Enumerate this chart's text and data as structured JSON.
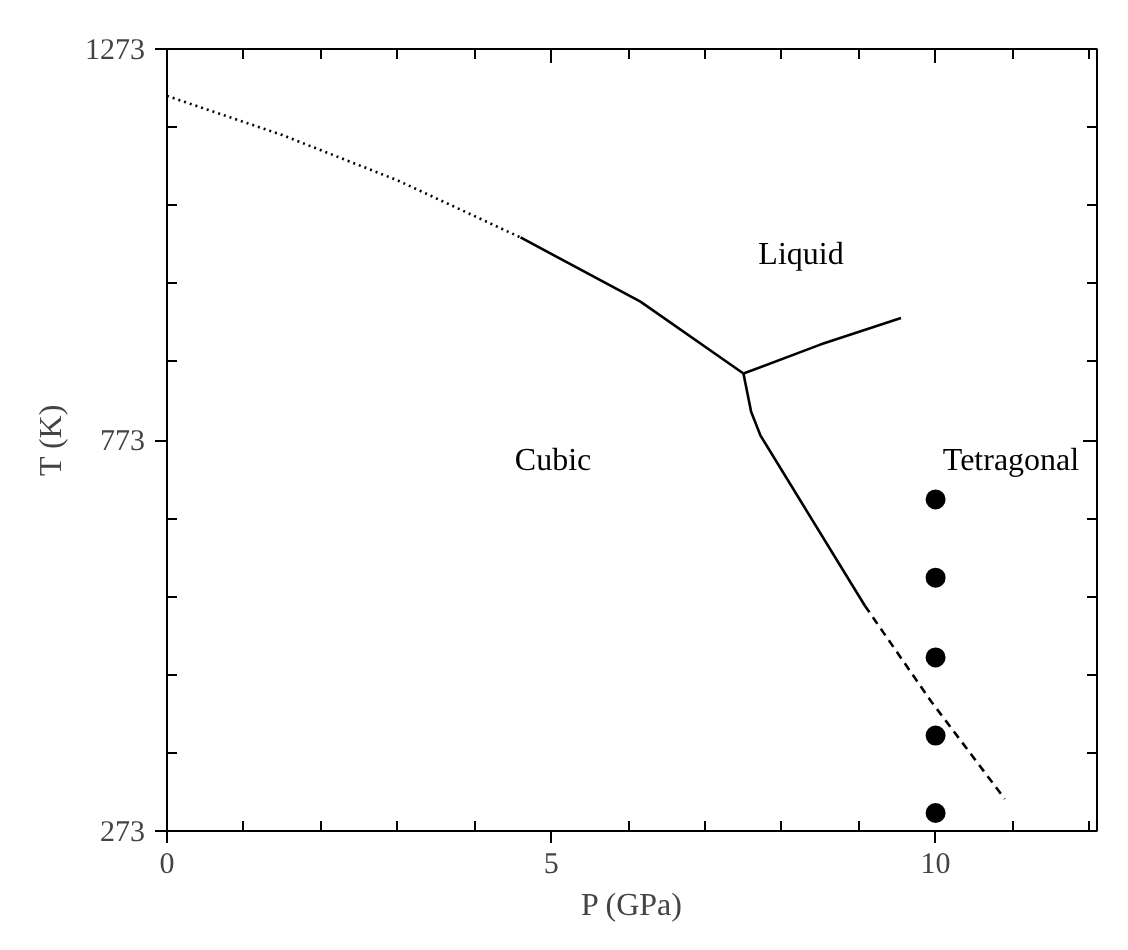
{
  "chart_data": {
    "type": "line",
    "xlabel": "P (GPa)",
    "ylabel": "T (K)",
    "xlim": [
      0,
      12.1
    ],
    "ylim": [
      273,
      1273
    ],
    "xticks": [
      0,
      {
        "value": 1,
        "label": null
      },
      {
        "value": 2,
        "label": null
      },
      {
        "value": 3,
        "label": null
      },
      {
        "value": 4,
        "label": null
      },
      5,
      {
        "value": 6,
        "label": null
      },
      {
        "value": 7,
        "label": null
      },
      {
        "value": 8,
        "label": null
      },
      {
        "value": 9,
        "label": null
      },
      10,
      {
        "value": 11,
        "label": null
      },
      {
        "value": 12,
        "label": null
      }
    ],
    "yticks": [
      273,
      {
        "value": 373,
        "label": null
      },
      {
        "value": 473,
        "label": null
      },
      {
        "value": 573,
        "label": null
      },
      {
        "value": 673,
        "label": null
      },
      773,
      {
        "value": 873,
        "label": null
      },
      {
        "value": 973,
        "label": null
      },
      {
        "value": 1073,
        "label": null
      },
      {
        "value": 1173,
        "label": null
      },
      1273
    ],
    "grid": false,
    "series": [
      {
        "line_style": "dotted",
        "color": "#000000",
        "x": [
          0,
          1.5,
          3,
          4.6
        ],
        "values": [
          1213,
          1163,
          1105,
          1032
        ]
      },
      {
        "line_style": "solid",
        "color": "#000000",
        "x": [
          4.6,
          6.16,
          7.5
        ],
        "values": [
          1032,
          950,
          858
        ]
      },
      {
        "line_style": "solid",
        "color": "#000000",
        "x": [
          7.5,
          8.5,
          9.55
        ],
        "values": [
          858,
          895,
          929
        ]
      },
      {
        "line_style": "solid",
        "color": "#000000",
        "x": [
          7.5,
          7.6,
          7.72,
          8.25,
          9.08
        ],
        "values": [
          858,
          809,
          779,
          694,
          561
        ]
      },
      {
        "line_style": "dashed",
        "color": "#000000",
        "x": [
          9.08,
          9.94,
          10.9
        ],
        "values": [
          561,
          439,
          314
        ]
      },
      {
        "type": "scatter",
        "marker": "circle",
        "color": "#000000",
        "x": [
          10,
          10,
          10,
          10,
          10
        ],
        "values": [
          697,
          597,
          495,
          395,
          296
        ]
      }
    ],
    "annotations": [
      "Liquid",
      "Cubic",
      "Tetragonal"
    ]
  }
}
